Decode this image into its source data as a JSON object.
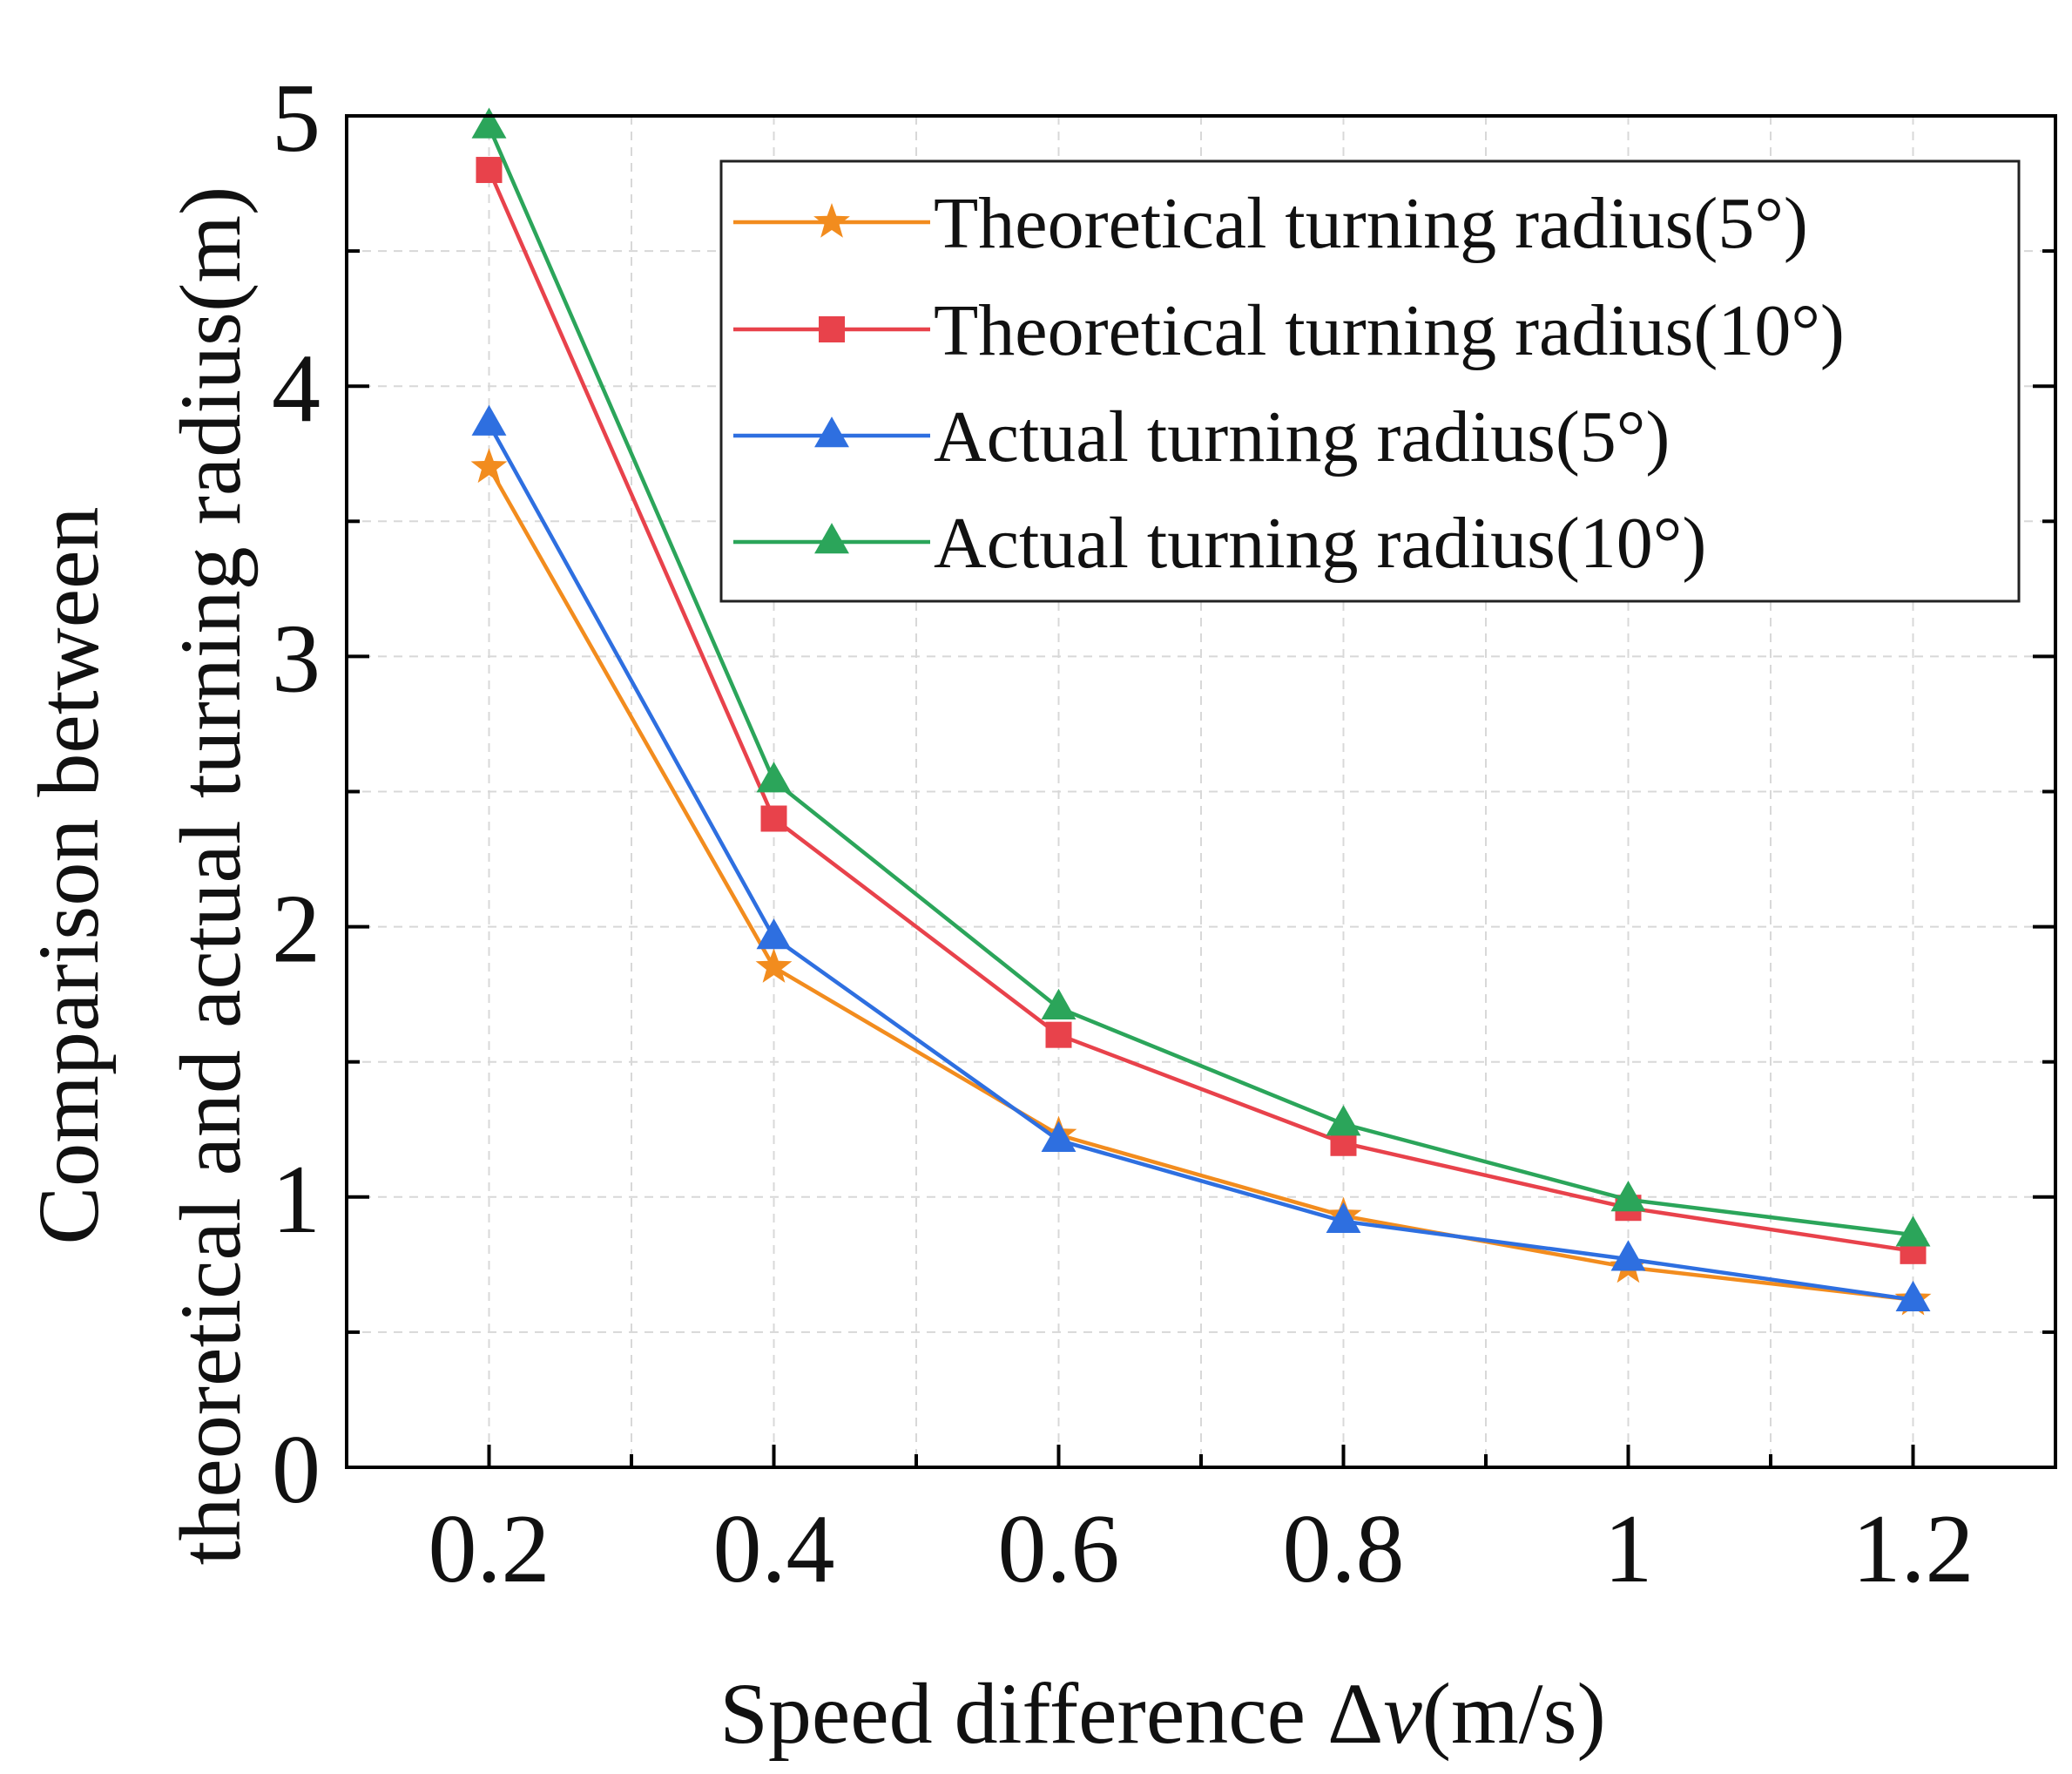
{
  "chart_data": {
    "type": "line",
    "title": "",
    "xlabel_prefix": "Speed difference Δ",
    "xlabel_var": "v",
    "xlabel_suffix": "(m/s)",
    "ylabel_line1": "Comparison between",
    "ylabel_line2": "theoretical and actual turning radius(m)",
    "x": [
      0.2,
      0.4,
      0.6,
      0.8,
      1.0,
      1.2
    ],
    "x_tick_labels": [
      "0.2",
      "0.4",
      "0.6",
      "0.8",
      "1",
      "1.2"
    ],
    "y_ticks": [
      0,
      1,
      2,
      3,
      4,
      5
    ],
    "y_tick_labels": [
      "0",
      "1",
      "2",
      "3",
      "4",
      "5"
    ],
    "xlim": [
      0.1,
      1.3
    ],
    "ylim": [
      0,
      5
    ],
    "grid": true,
    "legend_position": "top-right",
    "series": [
      {
        "name": "Theoretical turning radius(5°)",
        "color": "#F28C1E",
        "marker": "star",
        "values": [
          3.7,
          1.85,
          1.23,
          0.93,
          0.74,
          0.62
        ]
      },
      {
        "name": "Theoretical turning radius(10°)",
        "color": "#E8424B",
        "marker": "square",
        "values": [
          4.8,
          2.4,
          1.6,
          1.2,
          0.96,
          0.8
        ]
      },
      {
        "name": "Actual turning radius(5°)",
        "color": "#2E6FE0",
        "marker": "triangle",
        "values": [
          3.86,
          1.96,
          1.21,
          0.91,
          0.77,
          0.62
        ]
      },
      {
        "name": "Actual turning radius(10°)",
        "color": "#2BA55A",
        "marker": "triangle",
        "values": [
          4.96,
          2.54,
          1.7,
          1.27,
          0.99,
          0.86
        ]
      }
    ]
  }
}
